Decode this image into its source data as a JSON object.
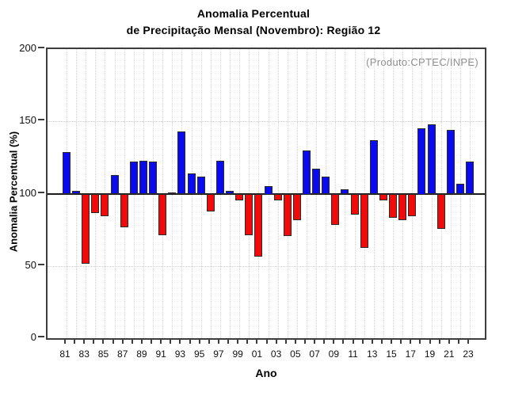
{
  "title": {
    "line1": "Anomalia Percentual",
    "line2": "de Precipitação Mensal (Novembro): Região 12"
  },
  "annotation": "(Produto:CPTEC/INPE)",
  "chart_data": {
    "type": "bar",
    "title": "Anomalia Percentual de Precipitação Mensal (Novembro): Região 12",
    "xlabel": "Ano",
    "ylabel": "Anomalia Percentual (%)",
    "ylim": [
      0,
      200
    ],
    "yticks": [
      0,
      50,
      100,
      150,
      200
    ],
    "baseline": 100,
    "grid": {
      "horizontal_dotted_at": [
        50,
        150
      ],
      "vertical_dotted": "every year",
      "style": "light-gray dotted"
    },
    "legend_position": "none",
    "colors": {
      "above_baseline": "#0a0af0",
      "below_baseline": "#f00a0a",
      "bar_outline": "#2b2b2b",
      "frame": "#3d3d3d",
      "annotation_gray": "#8f8f8f"
    },
    "categories": [
      "81",
      "82",
      "83",
      "84",
      "85",
      "86",
      "87",
      "88",
      "89",
      "90",
      "91",
      "92",
      "93",
      "94",
      "95",
      "96",
      "97",
      "98",
      "99",
      "00",
      "01",
      "02",
      "03",
      "04",
      "05",
      "06",
      "07",
      "08",
      "09",
      "10",
      "11",
      "12",
      "13",
      "14",
      "15",
      "16",
      "17",
      "18",
      "19",
      "20",
      "21",
      "22",
      "23"
    ],
    "x_tick_labels_shown": [
      "81",
      "83",
      "85",
      "87",
      "89",
      "91",
      "93",
      "95",
      "97",
      "99",
      "01",
      "03",
      "05",
      "07",
      "09",
      "11",
      "13",
      "15",
      "17",
      "19",
      "21",
      "23"
    ],
    "values": [
      129,
      102,
      52,
      87,
      85,
      113,
      77,
      122,
      123,
      122,
      72,
      101,
      143,
      114,
      112,
      88,
      123,
      102,
      96,
      72,
      57,
      105,
      96,
      71,
      82,
      130,
      117,
      112,
      79,
      103,
      86,
      63,
      137,
      96,
      84,
      82,
      85,
      145,
      148,
      76,
      144,
      107,
      122
    ]
  }
}
